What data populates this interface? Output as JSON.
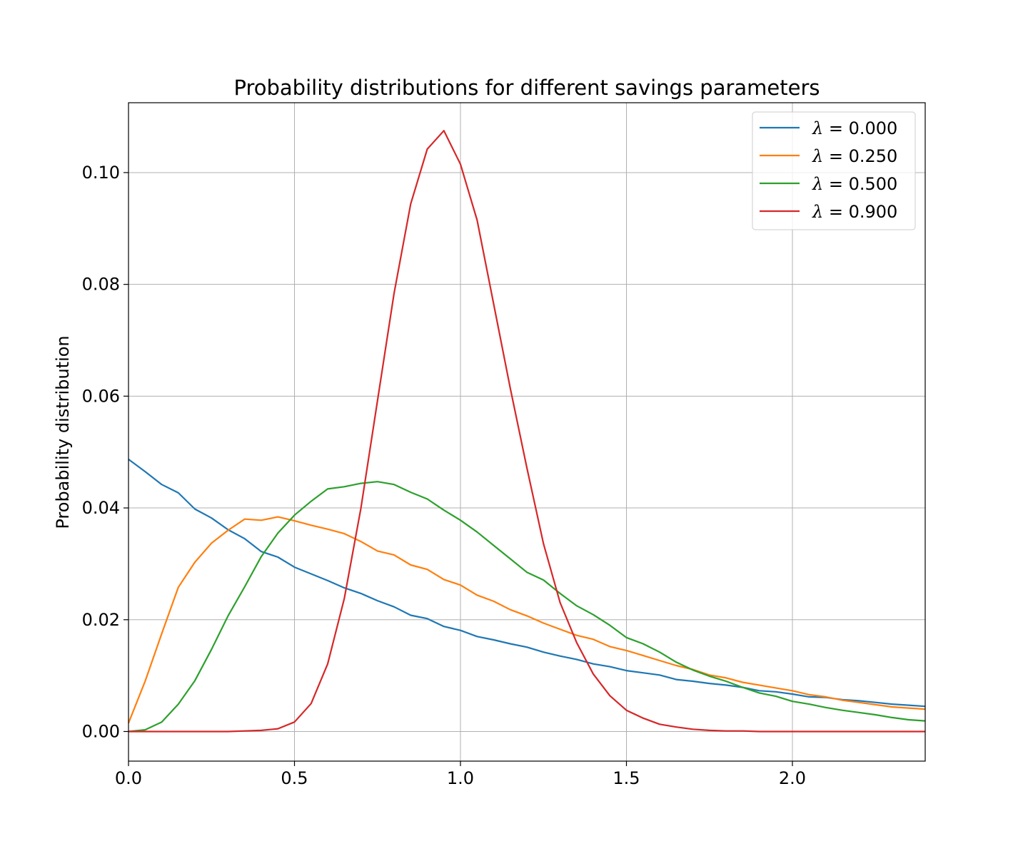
{
  "chart_data": {
    "type": "line",
    "title": "Probability distributions for different savings parameters",
    "xlabel": "",
    "ylabel": "Probability distribution",
    "xlim": [
      0.0,
      2.4
    ],
    "ylim": [
      -0.0053,
      0.1125
    ],
    "grid": true,
    "legend_position": "top-right",
    "xticks": [
      0.0,
      0.5,
      1.0,
      1.5,
      2.0
    ],
    "xtick_labels": [
      "0.0",
      "0.5",
      "1.0",
      "1.5",
      "2.0"
    ],
    "yticks": [
      0.0,
      0.02,
      0.04,
      0.06,
      0.08,
      0.1
    ],
    "ytick_labels": [
      "0.00",
      "0.02",
      "0.04",
      "0.06",
      "0.08",
      "0.10"
    ],
    "x": [
      0.0,
      0.05,
      0.1,
      0.15,
      0.2,
      0.25,
      0.3,
      0.35,
      0.4,
      0.45,
      0.5,
      0.55,
      0.6,
      0.65,
      0.7,
      0.75,
      0.8,
      0.85,
      0.9,
      0.95,
      1.0,
      1.05,
      1.1,
      1.15,
      1.2,
      1.25,
      1.3,
      1.35,
      1.4,
      1.45,
      1.5,
      1.55,
      1.6,
      1.65,
      1.7,
      1.75,
      1.8,
      1.85,
      1.9,
      1.95,
      2.0,
      2.05,
      2.1,
      2.15,
      2.2,
      2.25,
      2.3,
      2.35,
      2.4
    ],
    "series": [
      {
        "name": "λ = 0.000",
        "symbol": "λ",
        "value_text": " = 0.000",
        "color": "#1f77b4",
        "values": [
          0.0487,
          0.0465,
          0.0442,
          0.0427,
          0.0398,
          0.0382,
          0.0361,
          0.0345,
          0.0322,
          0.0312,
          0.0294,
          0.0282,
          0.027,
          0.0257,
          0.0247,
          0.0234,
          0.0223,
          0.0208,
          0.0202,
          0.0188,
          0.0181,
          0.017,
          0.0164,
          0.0157,
          0.0151,
          0.0142,
          0.0135,
          0.0129,
          0.0121,
          0.0116,
          0.0109,
          0.0105,
          0.0101,
          0.0093,
          0.009,
          0.0086,
          0.0083,
          0.0079,
          0.0073,
          0.0071,
          0.0067,
          0.0062,
          0.0061,
          0.0057,
          0.0055,
          0.0052,
          0.0049,
          0.0047,
          0.0045
        ]
      },
      {
        "name": "λ = 0.250",
        "symbol": "λ",
        "value_text": " = 0.250",
        "color": "#ff7f0e",
        "values": [
          0.0015,
          0.009,
          0.0175,
          0.0258,
          0.0303,
          0.0337,
          0.036,
          0.038,
          0.0378,
          0.0384,
          0.0377,
          0.0369,
          0.0362,
          0.0354,
          0.034,
          0.0323,
          0.0316,
          0.0298,
          0.029,
          0.0272,
          0.0262,
          0.0244,
          0.0233,
          0.0218,
          0.0207,
          0.0194,
          0.0183,
          0.0172,
          0.0165,
          0.0152,
          0.0145,
          0.0136,
          0.0127,
          0.0118,
          0.0111,
          0.0101,
          0.0096,
          0.0088,
          0.0083,
          0.0078,
          0.0073,
          0.0066,
          0.0062,
          0.0056,
          0.0052,
          0.0048,
          0.0044,
          0.0042,
          0.004
        ]
      },
      {
        "name": "λ = 0.500",
        "symbol": "λ",
        "value_text": " = 0.500",
        "color": "#2ca02c",
        "values": [
          0.0,
          0.0003,
          0.0017,
          0.0049,
          0.0091,
          0.0147,
          0.0207,
          0.0259,
          0.0313,
          0.0355,
          0.0387,
          0.0412,
          0.0434,
          0.0438,
          0.0444,
          0.0447,
          0.0442,
          0.0428,
          0.0416,
          0.0396,
          0.0378,
          0.0357,
          0.0333,
          0.0309,
          0.0285,
          0.0271,
          0.0247,
          0.0225,
          0.0209,
          0.019,
          0.0168,
          0.0157,
          0.0142,
          0.0124,
          0.011,
          0.0099,
          0.009,
          0.0079,
          0.0069,
          0.0063,
          0.0054,
          0.0049,
          0.0043,
          0.0038,
          0.0034,
          0.003,
          0.0025,
          0.0021,
          0.0019
        ]
      },
      {
        "name": "λ = 0.900",
        "symbol": "λ",
        "value_text": " = 0.900",
        "color": "#d62728",
        "values": [
          0.0,
          0.0,
          0.0,
          0.0,
          0.0,
          0.0,
          0.0,
          0.0001,
          0.0002,
          0.0005,
          0.0017,
          0.005,
          0.0121,
          0.0238,
          0.0399,
          0.0592,
          0.0784,
          0.0944,
          0.1042,
          0.1075,
          0.1015,
          0.0915,
          0.0765,
          0.0614,
          0.0472,
          0.0336,
          0.0231,
          0.0159,
          0.0103,
          0.0064,
          0.0038,
          0.0024,
          0.0013,
          0.0008,
          0.0004,
          0.0002,
          0.0001,
          0.0001,
          0.0,
          0.0,
          0.0,
          0.0,
          0.0,
          0.0,
          0.0,
          0.0,
          0.0,
          0.0,
          0.0
        ]
      }
    ]
  }
}
